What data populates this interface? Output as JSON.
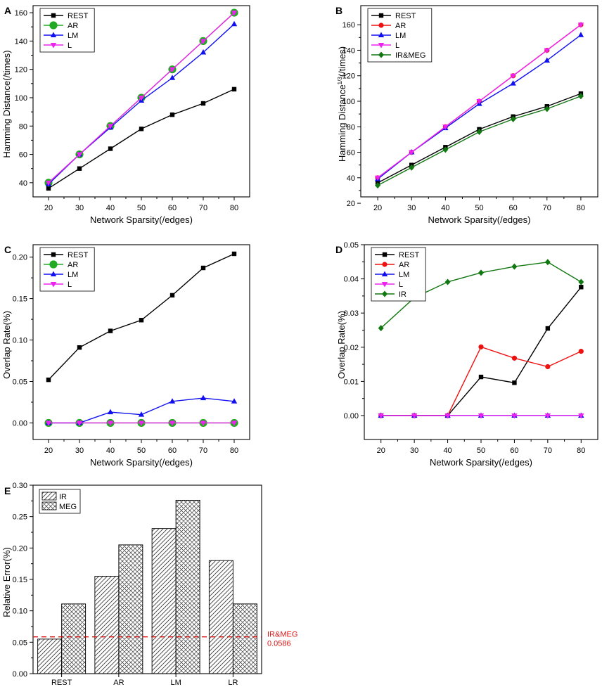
{
  "chart_data": [
    {
      "panel": "A",
      "type": "line",
      "xlabel": "Network Sparsity(/edges)",
      "ylabel": "Hamming Distance(/times)",
      "xlim": [
        15,
        85
      ],
      "ylim": [
        30,
        165
      ],
      "xticks": [
        20,
        30,
        40,
        50,
        60,
        70,
        80
      ],
      "yticks": [
        40,
        60,
        80,
        100,
        120,
        140,
        160
      ],
      "legend_position": "top-left",
      "x": [
        20,
        30,
        40,
        50,
        60,
        70,
        80
      ],
      "series": [
        {
          "name": "REST",
          "color": "#000000",
          "marker": "square",
          "values": [
            36,
            50,
            64,
            78,
            88,
            96,
            106
          ]
        },
        {
          "name": "AR",
          "color": "#22aa22",
          "marker": "circle-large",
          "values": [
            40,
            60,
            80,
            100,
            120,
            140,
            160
          ]
        },
        {
          "name": "LM",
          "color": "#1010ee",
          "marker": "triangle-up",
          "values": [
            39,
            60,
            79,
            98,
            114,
            132,
            152
          ]
        },
        {
          "name": "L",
          "color": "#ee22ee",
          "marker": "triangle-down",
          "values": [
            40,
            60,
            80,
            100,
            120,
            140,
            160
          ]
        }
      ]
    },
    {
      "panel": "B",
      "type": "line",
      "xlabel": "Network Sparsity(/edges)",
      "ylabel": "Hamming Distance",
      "ylabel_superscript": "1/3",
      "ylabel_suffix": "(/times)",
      "xlim": [
        15,
        85
      ],
      "ylim": [
        25,
        175
      ],
      "xticks": [
        20,
        30,
        40,
        50,
        60,
        70,
        80
      ],
      "yticks": [
        20,
        40,
        60,
        80,
        100,
        120,
        140,
        160
      ],
      "legend_position": "top-left",
      "x": [
        20,
        30,
        40,
        50,
        60,
        70,
        80
      ],
      "series": [
        {
          "name": "REST",
          "color": "#000000",
          "marker": "square",
          "values": [
            36,
            50,
            64,
            78,
            88,
            96,
            106
          ]
        },
        {
          "name": "AR",
          "color": "#ee1111",
          "marker": "circle",
          "values": [
            40,
            60,
            80,
            100,
            120,
            140,
            160
          ]
        },
        {
          "name": "LM",
          "color": "#1010ee",
          "marker": "triangle-up",
          "values": [
            39,
            60,
            79,
            98,
            114,
            132,
            152
          ]
        },
        {
          "name": "L",
          "color": "#ee22ee",
          "marker": "triangle-down",
          "values": [
            40,
            60,
            80,
            100,
            120,
            140,
            160
          ]
        },
        {
          "name": "IR&MEG",
          "color": "#117711",
          "marker": "diamond",
          "values": [
            34,
            48,
            62,
            76,
            86,
            94,
            104
          ]
        }
      ]
    },
    {
      "panel": "C",
      "type": "line",
      "xlabel": "Network Sparsity(/edges)",
      "ylabel": "Overlap Rate(%)",
      "xlim": [
        15,
        85
      ],
      "ylim": [
        -0.02,
        0.215
      ],
      "xticks": [
        20,
        30,
        40,
        50,
        60,
        70,
        80
      ],
      "yticks": [
        "0.00",
        "0.05",
        "0.10",
        "0.15",
        "0.20"
      ],
      "legend_position": "top-left",
      "x": [
        20,
        30,
        40,
        50,
        60,
        70,
        80
      ],
      "series": [
        {
          "name": "REST",
          "color": "#000000",
          "marker": "square",
          "values": [
            0.052,
            0.091,
            0.111,
            0.124,
            0.154,
            0.187,
            0.204
          ]
        },
        {
          "name": "AR",
          "color": "#22aa22",
          "marker": "circle-large",
          "values": [
            0,
            0,
            0,
            0,
            0,
            0,
            0
          ]
        },
        {
          "name": "LM",
          "color": "#1010ee",
          "marker": "triangle-up",
          "values": [
            0,
            0,
            0.013,
            0.01,
            0.026,
            0.03,
            0.026
          ]
        },
        {
          "name": "L",
          "color": "#ee22ee",
          "marker": "triangle-down",
          "values": [
            0,
            0,
            0,
            0,
            0,
            0,
            0
          ]
        }
      ]
    },
    {
      "panel": "D",
      "type": "line",
      "xlabel": "Network Sparsity(/edges)",
      "ylabel": "Overlap Rate(%)",
      "xlim": [
        15,
        85
      ],
      "ylim": [
        -0.007,
        0.05
      ],
      "xticks": [
        20,
        30,
        40,
        50,
        60,
        70,
        80
      ],
      "yticks": [
        "0.00",
        "0.01",
        "0.02",
        "0.03",
        "0.04",
        "0.05"
      ],
      "legend_position": "top-left",
      "x": [
        20,
        30,
        40,
        50,
        60,
        70,
        80
      ],
      "series": [
        {
          "name": "REST",
          "color": "#000000",
          "marker": "square",
          "values": [
            0,
            0,
            0,
            0.0113,
            0.0096,
            0.0255,
            0.0376
          ]
        },
        {
          "name": "AR",
          "color": "#ee1111",
          "marker": "circle",
          "values": [
            0,
            0,
            0,
            0.0201,
            0.0168,
            0.0143,
            0.0188
          ]
        },
        {
          "name": "LM",
          "color": "#1010ee",
          "marker": "triangle-up",
          "values": [
            0,
            0,
            0,
            0,
            0,
            0,
            0
          ]
        },
        {
          "name": "L",
          "color": "#ee22ee",
          "marker": "triangle-down",
          "values": [
            0,
            0,
            0,
            0,
            0,
            0,
            0
          ]
        },
        {
          "name": "IR",
          "color": "#117711",
          "marker": "diamond",
          "values": [
            0.0256,
            0.0345,
            0.0391,
            0.0418,
            0.0436,
            0.0449,
            0.0391
          ]
        }
      ]
    },
    {
      "panel": "E",
      "type": "bar",
      "xlabel": "",
      "ylabel": "Relative Error(%)",
      "ylim": [
        0,
        0.3
      ],
      "yticks": [
        "0.00",
        "0.05",
        "0.10",
        "0.15",
        "0.20",
        "0.25",
        "0.30"
      ],
      "categories": [
        "REST",
        "AR",
        "LM",
        "LR"
      ],
      "legend_position": "top-left",
      "series": [
        {
          "name": "IR",
          "pattern": "diagonal-hatch",
          "values": [
            0.055,
            0.155,
            0.231,
            0.18
          ]
        },
        {
          "name": "MEG",
          "pattern": "cross-hatch",
          "values": [
            0.111,
            0.205,
            0.276,
            0.111
          ]
        }
      ],
      "reference_line": {
        "value": 0.0586,
        "color": "#dd1111",
        "label_line1": "IR&MEG",
        "label_line2": "0.0586"
      }
    }
  ]
}
